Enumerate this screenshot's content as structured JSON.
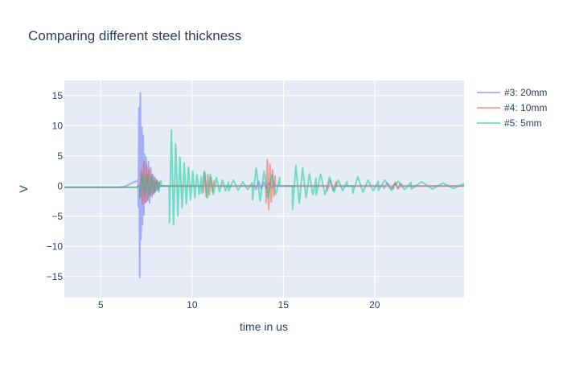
{
  "chart_data": {
    "type": "line",
    "title": "Comparing different steel thickness",
    "xlabel": "time in us",
    "ylabel": "V",
    "xlim": [
      3,
      24.9
    ],
    "ylim": [
      -18.5,
      17.5
    ],
    "xticks": [
      5,
      10,
      15,
      20
    ],
    "yticks": [
      -15,
      -10,
      -5,
      0,
      5,
      10,
      15
    ],
    "ytick_labels": [
      "−15",
      "−10",
      "−5",
      "0",
      "5",
      "10",
      "15"
    ],
    "grid": true,
    "legend_position": "top-right",
    "series": [
      {
        "name": "#3: 20mm",
        "color": "#636efa",
        "bursts": [
          {
            "t0": 7.05,
            "t1": 7.55,
            "peaks": [
              -8,
              15,
              -17,
              15.7,
              -12.5,
              12,
              -8.5,
              8,
              -6,
              6,
              -4.5,
              5,
              -3,
              3
            ]
          },
          {
            "t0": 7.55,
            "t1": 8.2,
            "peaks": [
              -4,
              4,
              -3,
              3,
              -2,
              2,
              -1.5,
              1.5,
              -1,
              1,
              -0.6,
              0.6
            ]
          },
          {
            "t0": 13.5,
            "t1": 14.5,
            "peaks": [
              -0.6,
              0.8,
              -0.5,
              0.6,
              -0.4,
              0.5,
              -0.3,
              0.3
            ]
          },
          {
            "t0": 20.5,
            "t1": 21.5,
            "peaks": [
              -0.4,
              0.5,
              -0.4,
              0.4,
              -0.3,
              0.3
            ]
          }
        ],
        "bumps": [
          {
            "t": 7.0,
            "amp": 1.0,
            "w": 0.5
          }
        ]
      },
      {
        "name": "#4: 10mm",
        "color": "#ef553b",
        "bursts": [
          {
            "t0": 7.15,
            "t1": 8.2,
            "peaks": [
              -2,
              3,
              -3.5,
              4.5,
              -3,
              3.5,
              -2.5,
              3,
              -2,
              2.2,
              -1.5,
              1.5,
              -1,
              1,
              -0.8,
              0.8
            ]
          },
          {
            "t0": 10.6,
            "t1": 11.2,
            "peaks": [
              -1.5,
              2.5,
              -2,
              2,
              -1.5,
              1.5,
              -1,
              1
            ]
          },
          {
            "t0": 14.05,
            "t1": 14.55,
            "peaks": [
              -3,
              4.7,
              -4.3,
              4,
              -3,
              3,
              -2,
              2
            ]
          },
          {
            "t0": 17.4,
            "t1": 17.9,
            "peaks": [
              -0.8,
              1,
              -0.8,
              0.8
            ]
          },
          {
            "t0": 21,
            "t1": 21.4,
            "peaks": [
              -0.5,
              0.6,
              -0.5,
              0.5
            ]
          }
        ],
        "bumps": []
      },
      {
        "name": "#5: 5mm",
        "color": "#00cc96",
        "bursts": [
          {
            "t0": 7.15,
            "t1": 8.3,
            "peaks": [
              -1.8,
              2,
              -1.5,
              1.8,
              -1.5,
              1.5,
              -1.2,
              1.2,
              -1,
              1
            ]
          },
          {
            "t0": 8.75,
            "t1": 10.5,
            "peaks": [
              -7.5,
              9.5,
              -7,
              7.5,
              -5,
              5,
              -4,
              4,
              -3,
              3.3,
              -2.5,
              2.5,
              -2,
              2,
              -1.5,
              1.5
            ]
          },
          {
            "t0": 10.5,
            "t1": 12.0,
            "peaks": [
              -1.5,
              2.5,
              -2,
              2,
              -1.5,
              1.5,
              -1,
              1,
              -0.8,
              0.8
            ]
          },
          {
            "t0": 12.0,
            "t1": 13.3,
            "peaks": [
              -0.8,
              1,
              -0.7,
              0.7,
              -0.6,
              0.6
            ]
          },
          {
            "t0": 13.3,
            "t1": 14.8,
            "peaks": [
              -2.5,
              3,
              -2.5,
              2.5,
              -2,
              2,
              -1.5,
              1.5
            ]
          },
          {
            "t0": 15.5,
            "t1": 16.8,
            "peaks": [
              -4,
              3.5,
              -3,
              3,
              -2,
              2,
              -1.5,
              1.5
            ]
          },
          {
            "t0": 16.8,
            "t1": 18.5,
            "peaks": [
              -1.5,
              2,
              -1.5,
              1.5,
              -1,
              1,
              -0.8,
              0.8
            ]
          },
          {
            "t0": 18.8,
            "t1": 20.2,
            "peaks": [
              -1.2,
              1.5,
              -1,
              1,
              -0.8,
              0.8
            ]
          },
          {
            "t0": 20.2,
            "t1": 22.0,
            "peaks": [
              -0.8,
              1,
              -0.7,
              0.8,
              -0.6,
              0.6
            ]
          },
          {
            "t0": 22.0,
            "t1": 24.9,
            "peaks": [
              -0.5,
              0.7,
              -0.5,
              0.5,
              -0.4,
              0.4
            ]
          }
        ],
        "bumps": []
      }
    ]
  }
}
